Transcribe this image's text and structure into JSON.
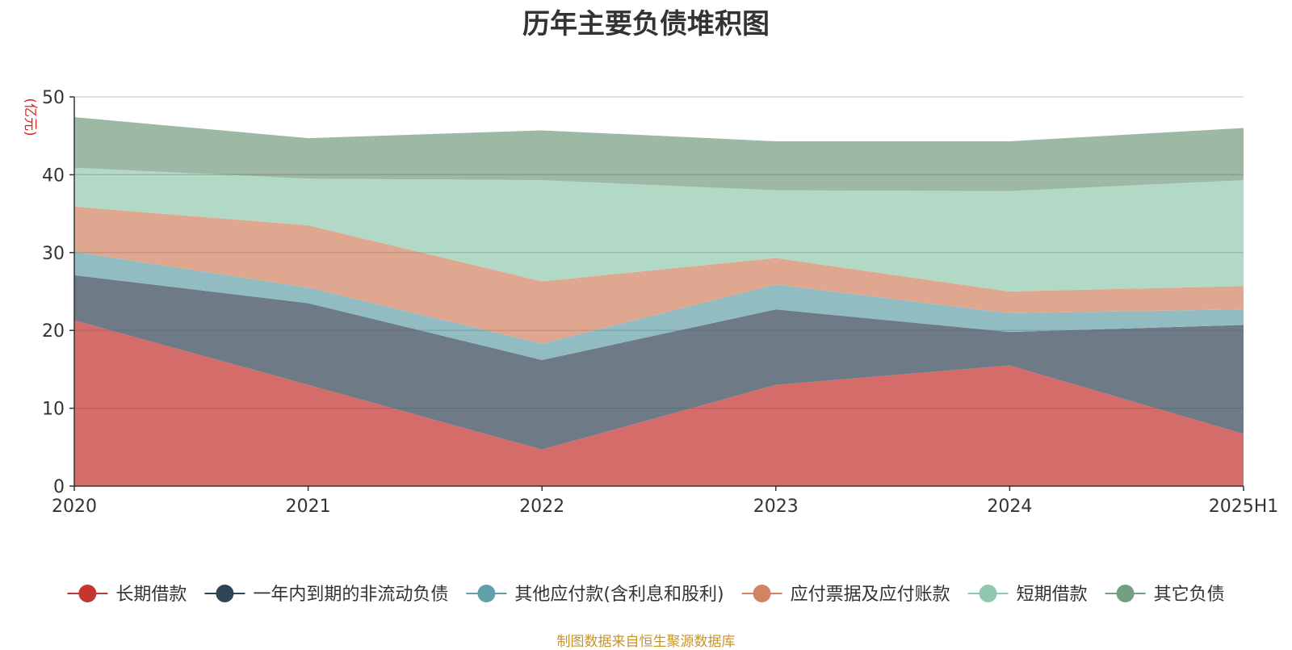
{
  "chart_data": {
    "type": "area",
    "stacked": true,
    "title": "历年主要负债堆积图",
    "unit_label": "(亿元)",
    "source_note": "制图数据来自恒生聚源数据库",
    "x": [
      "2020",
      "2021",
      "2022",
      "2023",
      "2024",
      "2025H1"
    ],
    "ylim": [
      0,
      50
    ],
    "yticks": [
      0,
      10,
      20,
      30,
      40,
      50
    ],
    "grid": true,
    "legend_position": "bottom",
    "series": [
      {
        "name": "长期借款",
        "color": "#d46c6a",
        "legend_color": "#c23531",
        "values": [
          21.3,
          13.0,
          4.7,
          13.0,
          15.5,
          6.7
        ]
      },
      {
        "name": "一年内到期的非流动负债",
        "color": "#6e7b87",
        "legend_color": "#2f4554",
        "values": [
          5.8,
          10.5,
          11.5,
          9.7,
          4.3,
          14.0
        ]
      },
      {
        "name": "其他应付款(含利息和股利)",
        "color": "#91bcc2",
        "legend_color": "#61a0a8",
        "values": [
          3.0,
          2.0,
          2.1,
          3.2,
          2.4,
          2.0
        ]
      },
      {
        "name": "应付票据及应付账款",
        "color": "#e0a790",
        "legend_color": "#d48265",
        "values": [
          5.8,
          8.0,
          8.0,
          3.4,
          2.8,
          3.0
        ]
      },
      {
        "name": "短期借款",
        "color": "#b2d8c6",
        "legend_color": "#91c7ae",
        "values": [
          5.0,
          6.0,
          13.0,
          8.7,
          12.9,
          13.6
        ]
      },
      {
        "name": "其它负债",
        "color": "#9db8a4",
        "legend_color": "#749f83",
        "values": [
          6.5,
          5.2,
          6.4,
          6.3,
          6.4,
          6.7
        ]
      }
    ]
  }
}
